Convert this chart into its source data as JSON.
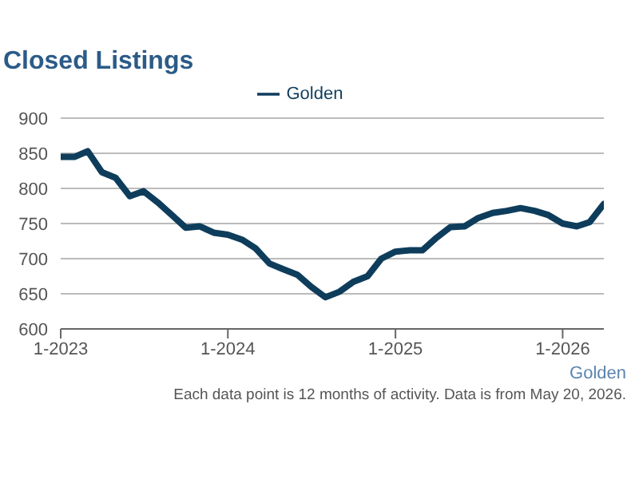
{
  "chart_data": {
    "type": "line",
    "title": "Closed Listings",
    "x": [
      "2023-01",
      "2023-02",
      "2023-03",
      "2023-04",
      "2023-05",
      "2023-06",
      "2023-07",
      "2023-08",
      "2023-09",
      "2023-10",
      "2023-11",
      "2023-12",
      "2024-01",
      "2024-02",
      "2024-03",
      "2024-04",
      "2024-05",
      "2024-06",
      "2024-07",
      "2024-08",
      "2024-09",
      "2024-10",
      "2024-11",
      "2024-12",
      "2025-01",
      "2025-02",
      "2025-03",
      "2025-04",
      "2025-05",
      "2025-06",
      "2025-07",
      "2025-08",
      "2025-09",
      "2025-10",
      "2025-11",
      "2025-12",
      "2026-01",
      "2026-02",
      "2026-03",
      "2026-04"
    ],
    "series": [
      {
        "name": "Golden",
        "color": "#0e3d5c",
        "values": [
          845,
          845,
          853,
          823,
          815,
          789,
          796,
          780,
          762,
          744,
          746,
          737,
          734,
          727,
          715,
          693,
          685,
          677,
          660,
          645,
          653,
          667,
          675,
          700,
          710,
          712,
          712,
          730,
          745,
          746,
          758,
          765,
          768,
          772,
          768,
          762,
          750,
          746,
          752,
          778
        ]
      }
    ],
    "xlim": [
      "2023-01",
      "2026-04"
    ],
    "xticks": [
      {
        "value": "2023-01",
        "label": "1-2023"
      },
      {
        "value": "2024-01",
        "label": "1-2024"
      },
      {
        "value": "2025-01",
        "label": "1-2025"
      },
      {
        "value": "2026-01",
        "label": "1-2026"
      }
    ],
    "ylim": [
      600,
      900
    ],
    "yticks": [
      600,
      650,
      700,
      750,
      800,
      850,
      900
    ],
    "grid": "y",
    "legend": "top",
    "marker": "none",
    "line_style": "solid",
    "annotations": [
      "Golden",
      "Each data point is 12 months of activity. Data is from May 20, 2026."
    ]
  }
}
